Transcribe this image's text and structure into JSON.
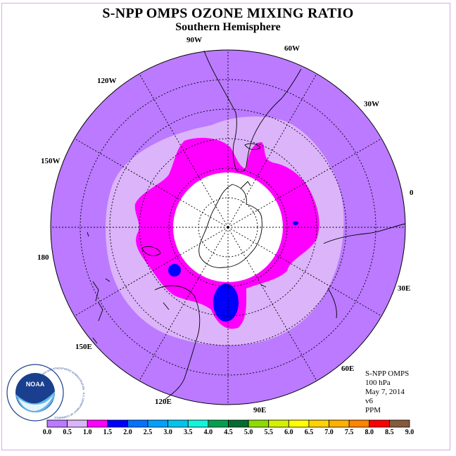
{
  "title": "S-NPP OMPS OZONE MIXING RATIO",
  "subtitle": "Southern Hemisphere",
  "info": {
    "instrument": "S-NPP OMPS",
    "level": "100 hPa",
    "date": "May 7, 2014",
    "version": "v6",
    "units": "PPM"
  },
  "logo": {
    "text": "NOAA",
    "ring_text": "NATIONAL OCEANIC AND ATMOSPHERIC ADMINISTRATION · U.S. DEPARTMENT OF COMMERCE"
  },
  "longitude_labels": [
    "0",
    "30E",
    "60E",
    "90E",
    "120E",
    "150E",
    "180",
    "150W",
    "120W",
    "90W",
    "60W",
    "30W"
  ],
  "colorbar": {
    "ticks": [
      "0.0",
      "0.5",
      "1.0",
      "1.5",
      "2.0",
      "2.5",
      "3.0",
      "3.5",
      "4.0",
      "4.5",
      "5.0",
      "5.5",
      "6.0",
      "6.5",
      "7.0",
      "7.5",
      "8.0",
      "8.5",
      "9.0"
    ],
    "colors": [
      "#bb7aff",
      "#dcb4fa",
      "#ff00ff",
      "#0000ff",
      "#0074ff",
      "#00a0ff",
      "#00c4ee",
      "#11f4dd",
      "#00a050",
      "#006e30",
      "#8cdc00",
      "#d2f000",
      "#ffff00",
      "#ffd200",
      "#ffb000",
      "#ff8400",
      "#ff0000",
      "#875a3c"
    ]
  },
  "colors": {
    "background_field": "#bb7aff",
    "band_0_5_1_0": "#dcb4fa",
    "band_1_0_1_5": "#ff00ff",
    "band_1_5_2_0": "#0000ff",
    "missing_data": "#ffffff",
    "frame": "#d9a9e8"
  }
}
